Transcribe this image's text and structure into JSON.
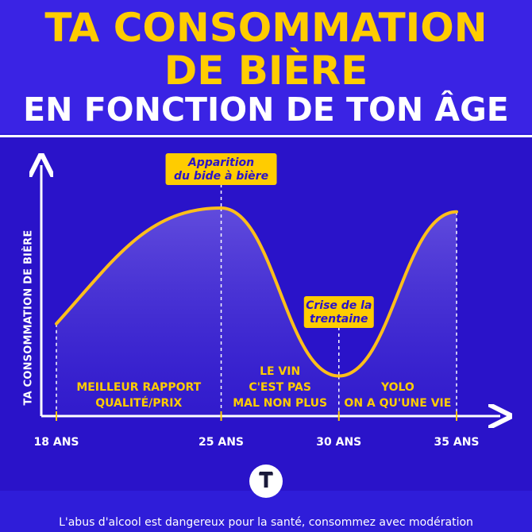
{
  "header": {
    "line1": "TA CONSOMMATION",
    "line2": "DE BIÈRE",
    "line3": "EN FONCTION DE TON ÂGE"
  },
  "colors": {
    "background": "#2f1dd9",
    "accent": "#ffcc00",
    "curve": "#ffbf1a"
  },
  "chart_data": {
    "type": "line",
    "title": "TA CONSOMMATION DE BIÈRE EN FONCTION DE TON ÂGE",
    "xlabel": "",
    "ylabel": "TA CONSOMMATION DE BIÈRE",
    "x_ticks": [
      "18 ANS",
      "25 ANS",
      "30 ANS",
      "35 ANS"
    ],
    "x_tick_values": [
      18,
      25,
      30,
      35
    ],
    "xlim": [
      18,
      35
    ],
    "ylim": [
      0,
      100
    ],
    "y_values_shown": false,
    "grid": false,
    "points": [
      {
        "x": 18,
        "y": 38
      },
      {
        "x": 25,
        "y": 100
      },
      {
        "x": 30,
        "y": 10
      },
      {
        "x": 35,
        "y": 98
      }
    ],
    "annotations": [
      {
        "x": 25,
        "text": "Apparition du bide à bière"
      },
      {
        "x": 30,
        "text": "Crise de la trentaine"
      }
    ],
    "region_labels": [
      {
        "from": 18,
        "to": 25,
        "lines": [
          "MEILLEUR RAPPORT",
          "QUALITÉ/PRIX"
        ]
      },
      {
        "from": 25,
        "to": 30,
        "lines": [
          "LE VIN",
          "C'EST PAS",
          "MAL NON PLUS"
        ]
      },
      {
        "from": 30,
        "to": 35,
        "lines": [
          "YOLO",
          "ON A QU'UNE VIE"
        ]
      }
    ]
  },
  "logo": {
    "icon": "t-logo-icon",
    "letter": "T"
  },
  "footer": {
    "disclaimer": "L'abus d'alcool est dangereux pour la santé, consommez avec modération"
  }
}
